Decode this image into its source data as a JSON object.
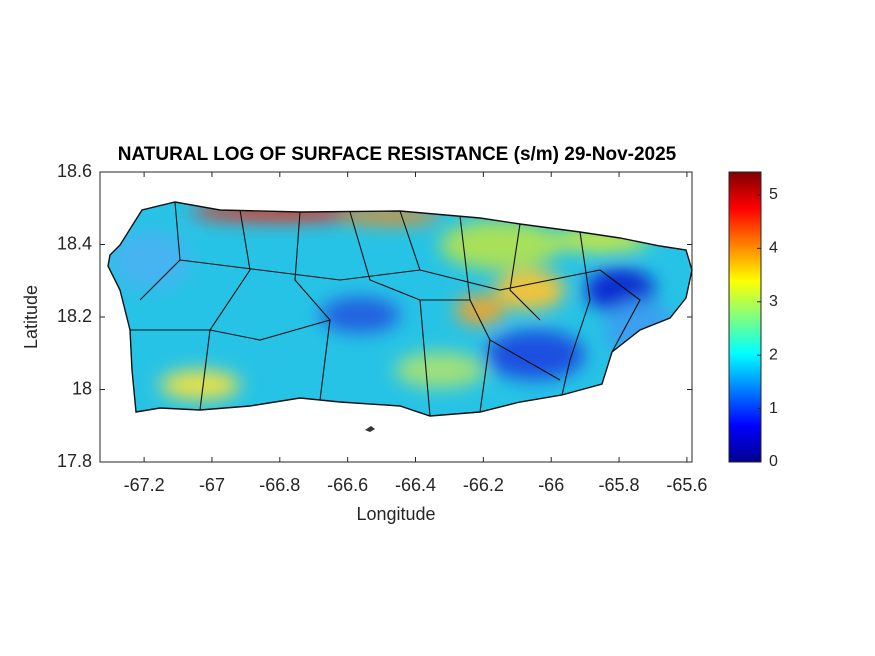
{
  "chart_data": {
    "type": "map-heatmap",
    "title": "NATURAL LOG OF SURFACE RESISTANCE (s/m) 29-Nov-2025",
    "xlabel": "Longitude",
    "ylabel": "Latitude",
    "xlim": [
      -67.33,
      -65.585
    ],
    "xticks": [
      -67.2,
      -67,
      -66.8,
      -66.6,
      -66.4,
      -66.2,
      -66,
      -65.8,
      -65.6
    ],
    "ylim": [
      17.8,
      18.6
    ],
    "yticks": [
      17.8,
      18,
      18.2,
      18.4,
      18.6
    ],
    "colorbar": {
      "colormap": "jet",
      "clim": [
        0,
        5.43
      ],
      "ticks": [
        0,
        1,
        2,
        3,
        4,
        5
      ]
    }
  }
}
